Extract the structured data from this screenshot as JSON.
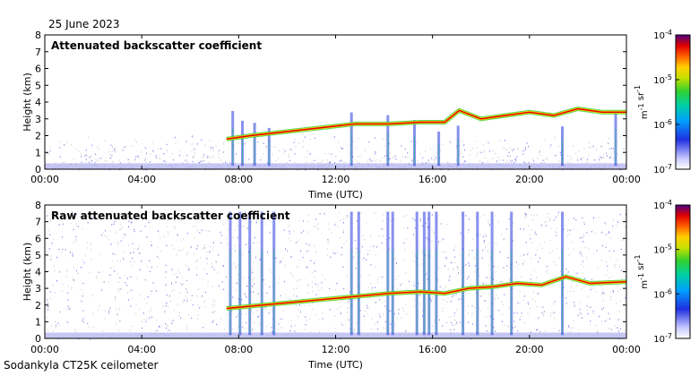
{
  "header": {
    "date": "25 June 2023"
  },
  "footer": {
    "instrument": "Sodankyla CT25K ceilometer"
  },
  "chart_data": [
    {
      "type": "heatmap",
      "title": "Attenuated backscatter coefficient",
      "xlabel": "Time (UTC)",
      "ylabel": "Height (km)",
      "x_ticks": [
        "00:00",
        "04:00",
        "08:00",
        "12:00",
        "16:00",
        "20:00",
        "00:00"
      ],
      "y_ticks": [
        "0",
        "1",
        "2",
        "3",
        "4",
        "5",
        "6",
        "7",
        "8"
      ],
      "ylim": [
        0,
        8
      ],
      "xlim_hours": [
        0,
        24
      ],
      "colorbar": {
        "label": "m-1 sr-1",
        "scale": "log",
        "ticks": [
          "10-7",
          "10-6",
          "10-5",
          "10-4"
        ],
        "range": [
          1e-07,
          0.0001
        ]
      },
      "cloud_layer_height_km": [
        {
          "t": 7.5,
          "h": 1.8
        },
        {
          "t": 8.5,
          "h": 2.0
        },
        {
          "t": 12.8,
          "h": 2.7
        },
        {
          "t": 14.2,
          "h": 2.7
        },
        {
          "t": 15.5,
          "h": 2.8
        },
        {
          "t": 16.5,
          "h": 2.8
        },
        {
          "t": 17.1,
          "h": 3.5
        },
        {
          "t": 18.0,
          "h": 3.0
        },
        {
          "t": 19.0,
          "h": 3.2
        },
        {
          "t": 20.0,
          "h": 3.4
        },
        {
          "t": 21.0,
          "h": 3.2
        },
        {
          "t": 22.0,
          "h": 3.6
        },
        {
          "t": 23.0,
          "h": 3.4
        },
        {
          "t": 24.0,
          "h": 3.4
        }
      ]
    },
    {
      "type": "heatmap",
      "title": "Raw attenuated backscatter coefficient",
      "xlabel": "Time (UTC)",
      "ylabel": "Height (km)",
      "x_ticks": [
        "00:00",
        "04:00",
        "08:00",
        "12:00",
        "16:00",
        "20:00",
        "00:00"
      ],
      "y_ticks": [
        "0",
        "1",
        "2",
        "3",
        "4",
        "5",
        "6",
        "7",
        "8"
      ],
      "ylim": [
        0,
        8
      ],
      "xlim_hours": [
        0,
        24
      ],
      "colorbar": {
        "label": "m-1 sr-1",
        "scale": "log",
        "ticks": [
          "10-7",
          "10-6",
          "10-5",
          "10-4"
        ],
        "range": [
          1e-07,
          0.0001
        ]
      },
      "cloud_layer_height_km": [
        {
          "t": 7.5,
          "h": 1.8
        },
        {
          "t": 14.2,
          "h": 2.7
        },
        {
          "t": 15.5,
          "h": 2.8
        },
        {
          "t": 16.5,
          "h": 2.7
        },
        {
          "t": 17.5,
          "h": 3.0
        },
        {
          "t": 18.5,
          "h": 3.1
        },
        {
          "t": 19.5,
          "h": 3.3
        },
        {
          "t": 20.5,
          "h": 3.2
        },
        {
          "t": 21.5,
          "h": 3.7
        },
        {
          "t": 22.5,
          "h": 3.3
        },
        {
          "t": 24.0,
          "h": 3.4
        }
      ]
    }
  ]
}
